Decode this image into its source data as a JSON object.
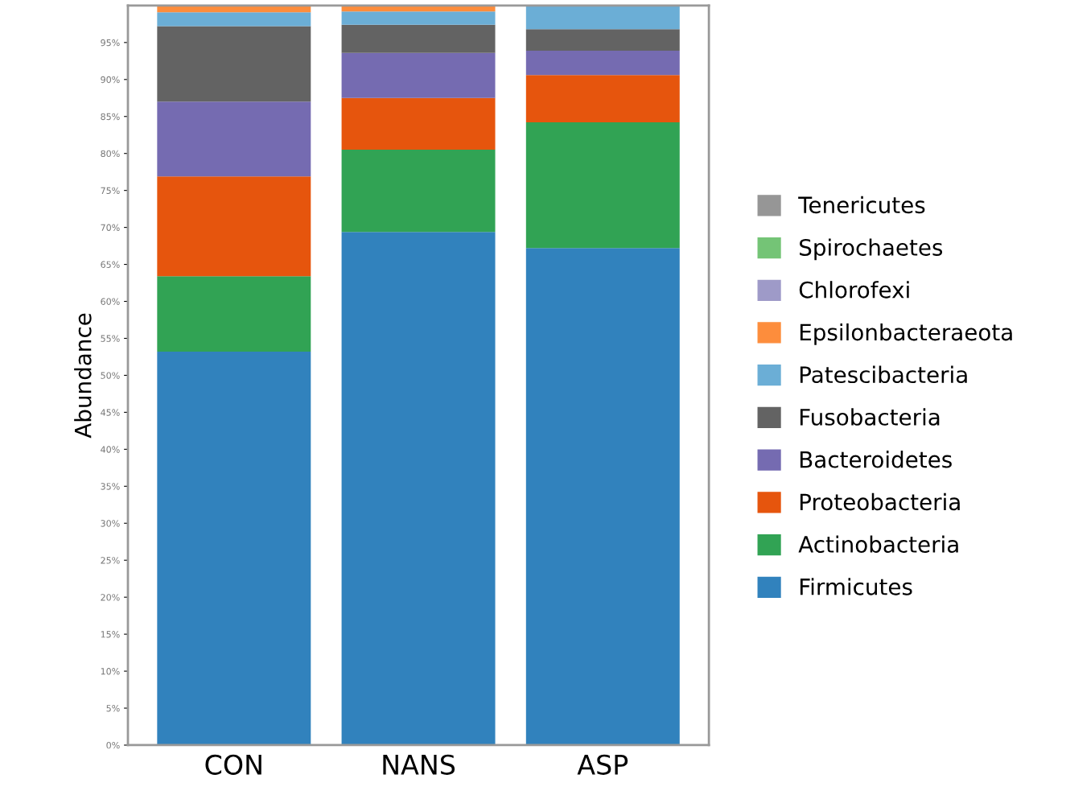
{
  "chart_data": {
    "type": "bar",
    "stacked": true,
    "ylabel": "Abundance",
    "categories": [
      "CON",
      "NANS",
      "ASP"
    ],
    "series": [
      {
        "name": "Firmicutes",
        "color": "#3182bd",
        "values": [
          53.2,
          69.4,
          67.2
        ]
      },
      {
        "name": "Actinobacteria",
        "color": "#31a354",
        "values": [
          10.2,
          11.1,
          17.0
        ]
      },
      {
        "name": "Proteobacteria",
        "color": "#e6550d",
        "values": [
          13.5,
          7.0,
          6.4
        ]
      },
      {
        "name": "Bacteroidetes",
        "color": "#756bb1",
        "values": [
          10.1,
          6.1,
          3.3
        ]
      },
      {
        "name": "Fusobacteria",
        "color": "#636363",
        "values": [
          10.2,
          3.8,
          2.9
        ]
      },
      {
        "name": "Patescibacteria",
        "color": "#6baed6",
        "values": [
          1.9,
          1.8,
          3.1
        ]
      },
      {
        "name": "Epsilonbacteraeota",
        "color": "#fd8d3c",
        "values": [
          0.9,
          0.8,
          0.1
        ]
      },
      {
        "name": "Chlorofexi",
        "color": "#9e9ac8",
        "values": [
          0,
          0,
          0
        ]
      },
      {
        "name": "Spirochaetes",
        "color": "#74c476",
        "values": [
          0,
          0,
          0
        ]
      },
      {
        "name": "Tenericutes",
        "color": "#969696",
        "values": [
          0,
          0,
          0
        ]
      }
    ],
    "ylim": [
      0,
      100
    ],
    "yticks": [
      {
        "value": 0,
        "label": "0%"
      },
      {
        "value": 5,
        "label": "5%"
      },
      {
        "value": 10,
        "label": "10%"
      },
      {
        "value": 15,
        "label": "15%"
      },
      {
        "value": 20,
        "label": "20%"
      },
      {
        "value": 25,
        "label": "25%"
      },
      {
        "value": 30,
        "label": "30%"
      },
      {
        "value": 35,
        "label": "35%"
      },
      {
        "value": 40,
        "label": "40%"
      },
      {
        "value": 45,
        "label": "45%"
      },
      {
        "value": 50,
        "label": "50%"
      },
      {
        "value": 55,
        "label": "55%"
      },
      {
        "value": 60,
        "label": "60%"
      },
      {
        "value": 65,
        "label": "65%"
      },
      {
        "value": 70,
        "label": "70%"
      },
      {
        "value": 75,
        "label": "75%"
      },
      {
        "value": 80,
        "label": "80%"
      },
      {
        "value": 85,
        "label": "85%"
      },
      {
        "value": 90,
        "label": "90%"
      },
      {
        "value": 95,
        "label": "95%"
      }
    ],
    "grid": false,
    "legend": "right"
  }
}
